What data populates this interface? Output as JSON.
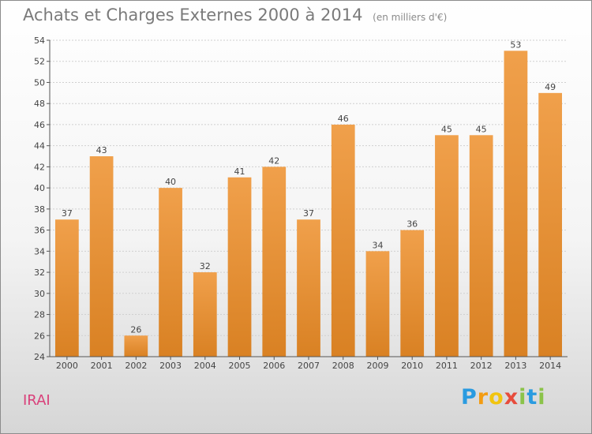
{
  "chart_data": {
    "type": "bar",
    "title": "Achats et Charges Externes 2000 à 2014",
    "subtitle": "(en milliers d'€)",
    "categories": [
      "2000",
      "2001",
      "2002",
      "2003",
      "2004",
      "2005",
      "2006",
      "2007",
      "2008",
      "2009",
      "2010",
      "2011",
      "2012",
      "2013",
      "2014"
    ],
    "values": [
      37,
      43,
      26,
      40,
      32,
      41,
      42,
      37,
      46,
      34,
      36,
      45,
      45,
      53,
      49
    ],
    "ylim": [
      24,
      54
    ],
    "yticks": [
      24,
      26,
      28,
      30,
      32,
      34,
      36,
      38,
      40,
      42,
      44,
      46,
      48,
      50,
      52,
      54
    ],
    "grid": true,
    "bar_color": "#f0a04b",
    "bar_color_dark": "#d98123"
  },
  "footer": {
    "location": "IRAI"
  },
  "logo": {
    "text": "Proxiti",
    "letters": [
      "P",
      "r",
      "o",
      "x",
      "i",
      "t",
      "i"
    ],
    "colors": [
      "#2a9be0",
      "#f39c12",
      "#f1c40f",
      "#e74c3c",
      "#8bc34a",
      "#2a9be0",
      "#8bc34a"
    ]
  }
}
